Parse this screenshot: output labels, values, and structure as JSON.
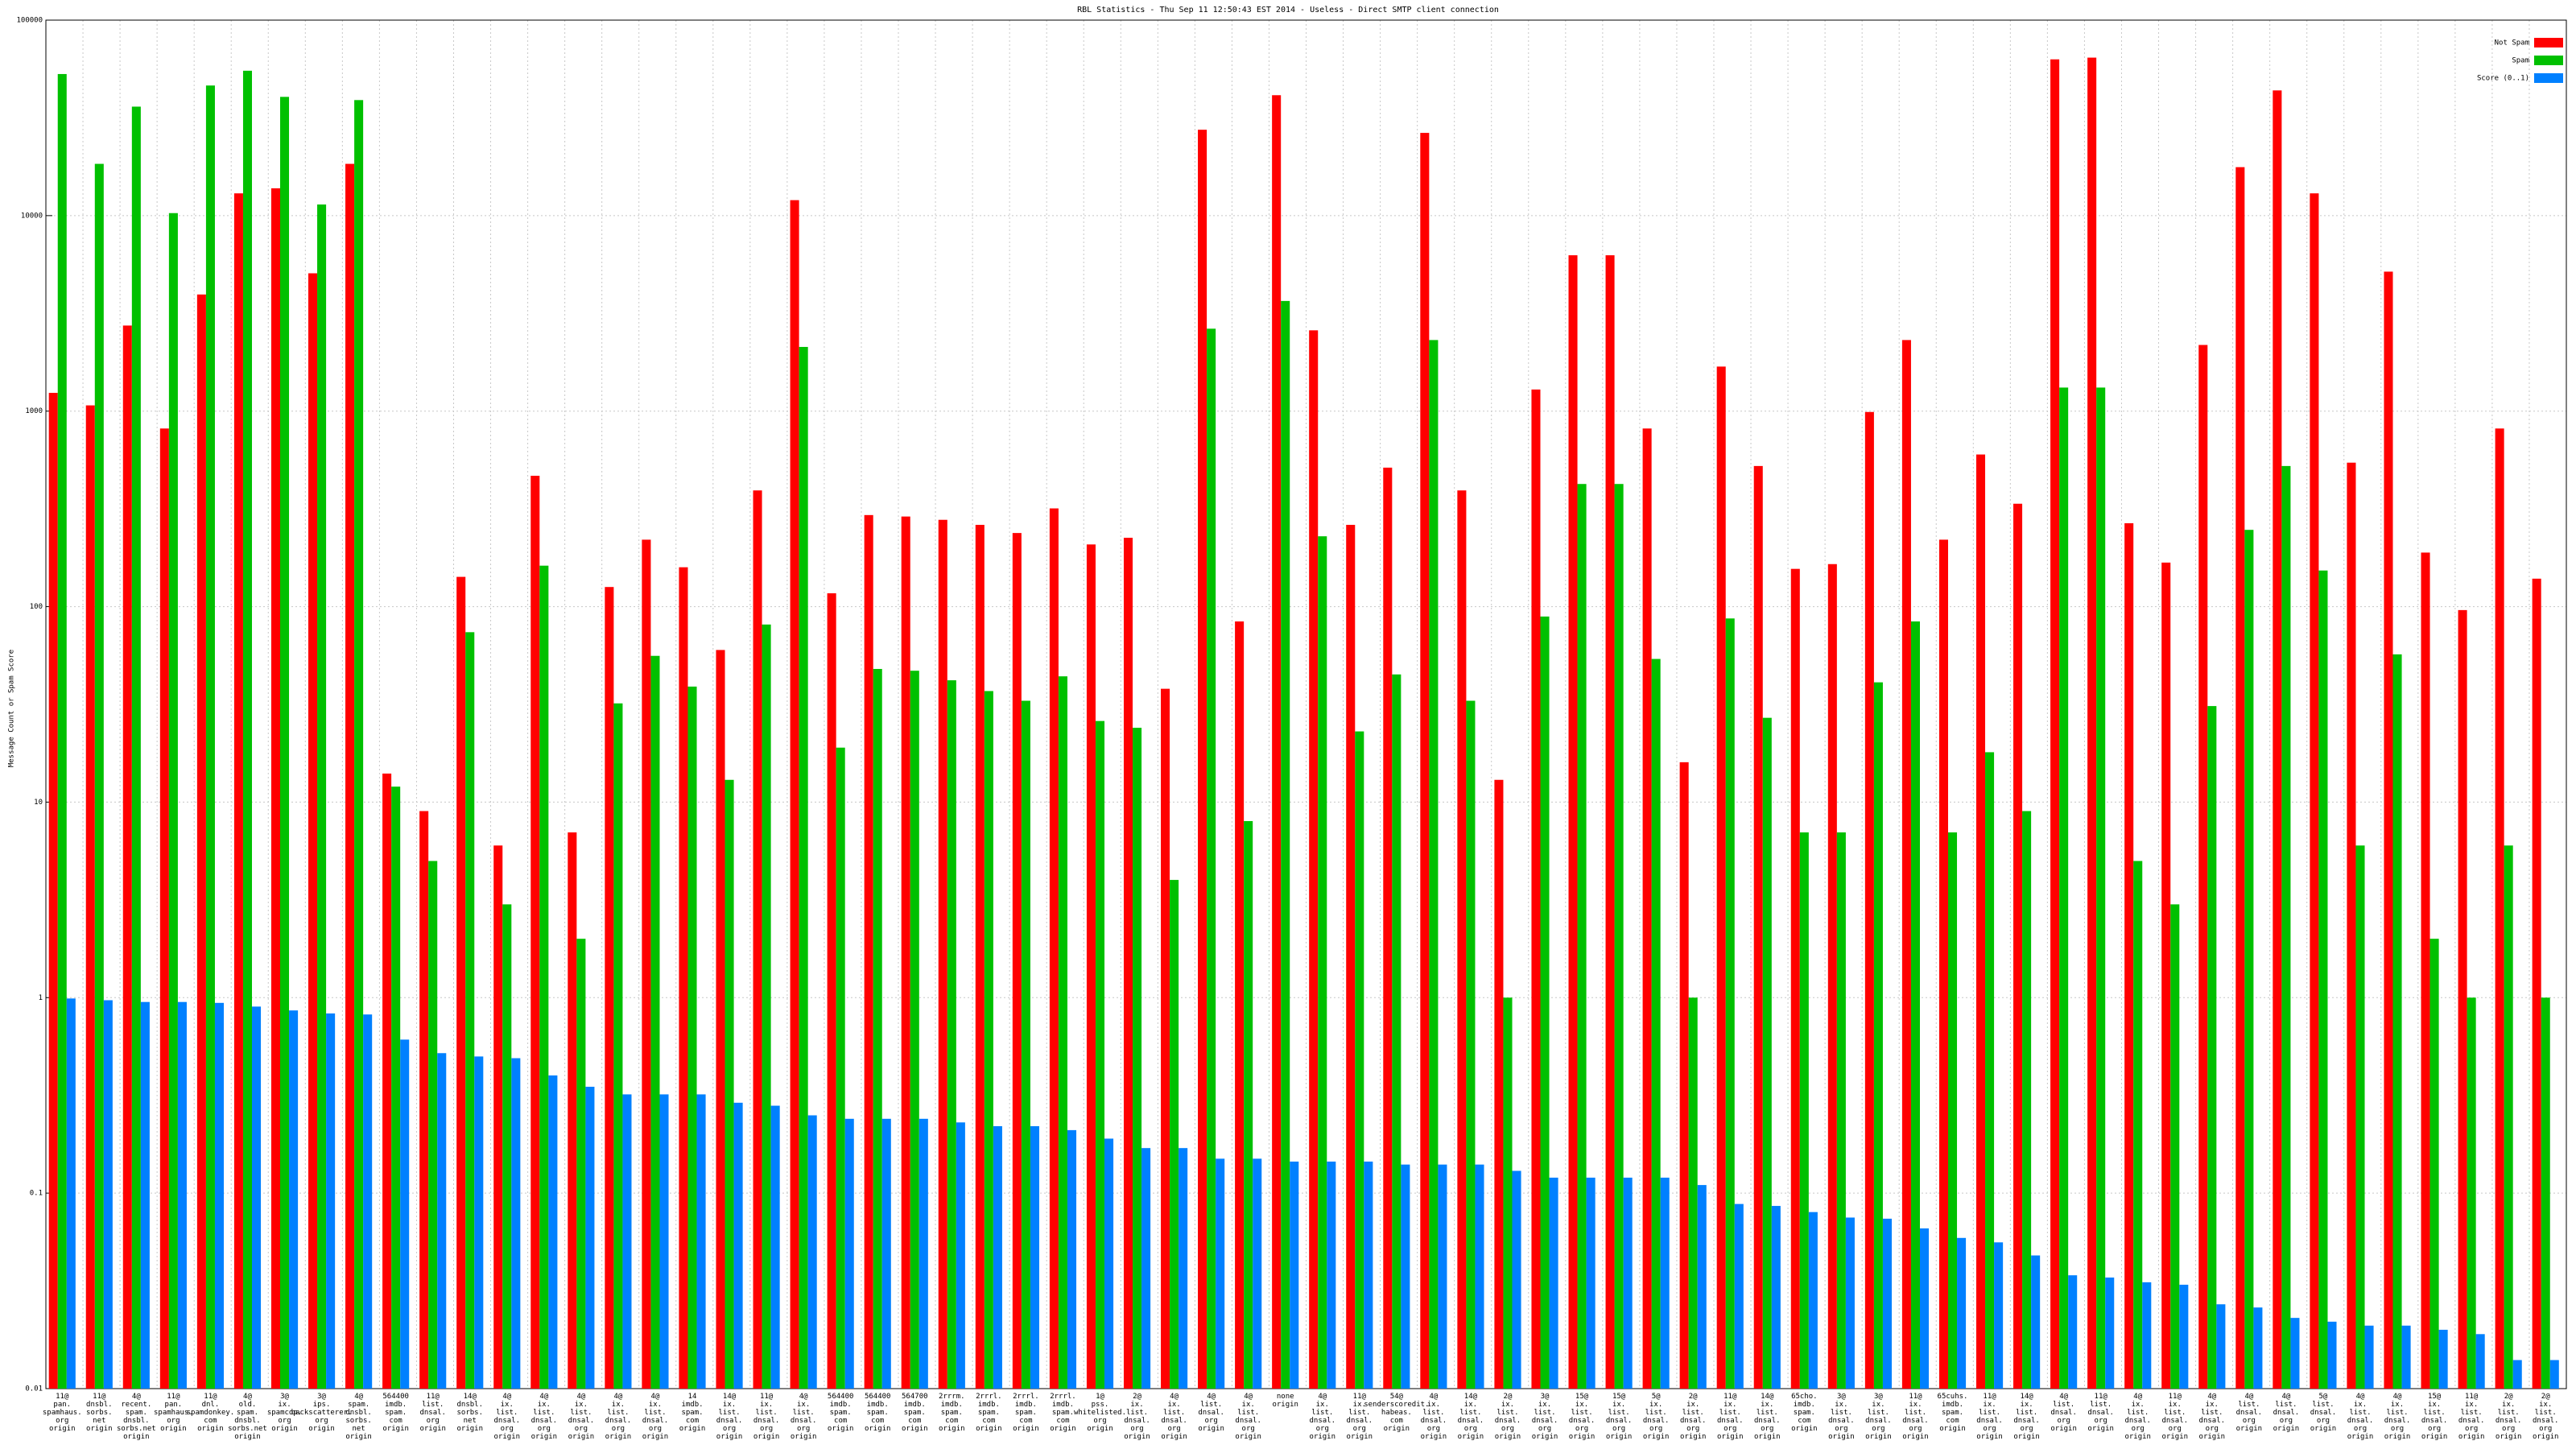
{
  "chart_data": {
    "type": "bar",
    "title": "RBL Statistics - Thu Sep 11 12:50:43 EST 2014 - Useless - Direct SMTP client connection",
    "y_label": "Message Count or Spam Score",
    "log_scale": true,
    "grid": true,
    "legend": "top-right",
    "ylim": [
      0.01,
      100000
    ],
    "yticks": [
      100000,
      10000,
      1000,
      100,
      10,
      1,
      0.1,
      0.01
    ],
    "categories": [
      [
        "11@",
        "pan.",
        "spamhaus.",
        "org",
        "origin"
      ],
      [
        "11@",
        "dnsbl.",
        "sorbs.",
        "net",
        "origin"
      ],
      [
        "4@",
        "recent.",
        "spam.",
        "dnsbl.",
        "sorbs.net",
        "origin"
      ],
      [
        "11@",
        "pan.",
        "spamhaus.",
        "org",
        "origin"
      ],
      [
        "11@",
        "dnl.",
        "spamdonkey.",
        "com",
        "origin"
      ],
      [
        "4@",
        "old.",
        "spam.",
        "dnsbl.",
        "sorbs.net",
        "origin"
      ],
      [
        "3@",
        "ix.",
        "spamcop.",
        "org",
        "origin"
      ],
      [
        "3@",
        "ips.",
        "backscatterer.",
        "org",
        "origin"
      ],
      [
        "4@",
        "spam.",
        "dnsbl.",
        "sorbs.",
        "net",
        "origin"
      ],
      [
        "564400",
        "imdb.",
        "spam.",
        "com",
        "origin"
      ],
      [
        "11@",
        "list.",
        "dnsal.",
        "org",
        "origin"
      ],
      [
        "14@",
        "dnsbl.",
        "sorbs.",
        "net",
        "origin"
      ],
      [
        "4@",
        "ix.",
        "list.",
        "dnsal.",
        "org",
        "origin"
      ],
      [
        "4@",
        "ix.",
        "list.",
        "dnsal.",
        "org",
        "origin"
      ],
      [
        "4@",
        "ix.",
        "list.",
        "dnsal.",
        "org",
        "origin"
      ],
      [
        "4@",
        "ix.",
        "list.",
        "dnsal.",
        "org",
        "origin"
      ],
      [
        "4@",
        "ix.",
        "list.",
        "dnsal.",
        "org",
        "origin"
      ],
      [
        "14",
        "imdb.",
        "spam.",
        "com",
        "origin"
      ],
      [
        "14@",
        "ix.",
        "list.",
        "dnsal.",
        "org",
        "origin"
      ],
      [
        "11@",
        "ix.",
        "list.",
        "dnsal.",
        "org",
        "origin"
      ],
      [
        "4@",
        "ix.",
        "list.",
        "dnsal.",
        "org",
        "origin"
      ],
      [
        "564400",
        "imdb.",
        "spam.",
        "com",
        "origin"
      ],
      [
        "564400",
        "imdb.",
        "spam.",
        "com",
        "origin"
      ],
      [
        "564700",
        "imdb.",
        "spam.",
        "com",
        "origin"
      ],
      [
        "2rrrm.",
        "imdb.",
        "spam.",
        "com",
        "origin"
      ],
      [
        "2rrrl.",
        "imdb.",
        "spam.",
        "com",
        "origin"
      ],
      [
        "2rrrl.",
        "imdb.",
        "spam.",
        "com",
        "origin"
      ],
      [
        "2rrrl.",
        "imdb.",
        "spam.",
        "com",
        "origin"
      ],
      [
        "1@",
        "pss.",
        "whitelisted.",
        "org",
        "origin"
      ],
      [
        "2@",
        "ix.",
        "list.",
        "dnsal.",
        "org",
        "origin"
      ],
      [
        "4@",
        "ix.",
        "list.",
        "dnsal.",
        "org",
        "origin"
      ],
      [
        "4@",
        "list.",
        "dnsal.",
        "org",
        "origin"
      ],
      [
        "4@",
        "ix.",
        "list.",
        "dnsal.",
        "org",
        "origin"
      ],
      [
        "none",
        "origin"
      ],
      [
        "4@",
        "ix.",
        "list.",
        "dnsal.",
        "org",
        "origin"
      ],
      [
        "11@",
        "ix.",
        "list.",
        "dnsal.",
        "org",
        "origin"
      ],
      [
        "54@",
        "senderscoredit.",
        "habeas.",
        "com",
        "origin"
      ],
      [
        "4@",
        "ix.",
        "list.",
        "dnsal.",
        "org",
        "origin"
      ],
      [
        "14@",
        "ix.",
        "list.",
        "dnsal.",
        "org",
        "origin"
      ],
      [
        "2@",
        "ix.",
        "list.",
        "dnsal.",
        "org",
        "origin"
      ],
      [
        "3@",
        "ix.",
        "list.",
        "dnsal.",
        "org",
        "origin"
      ],
      [
        "15@",
        "ix.",
        "list.",
        "dnsal.",
        "org",
        "origin"
      ],
      [
        "15@",
        "ix.",
        "list.",
        "dnsal.",
        "org",
        "origin"
      ],
      [
        "5@",
        "ix.",
        "list.",
        "dnsal.",
        "org",
        "origin"
      ],
      [
        "2@",
        "ix.",
        "list.",
        "dnsal.",
        "org",
        "origin"
      ],
      [
        "11@",
        "ix.",
        "list.",
        "dnsal.",
        "org",
        "origin"
      ],
      [
        "14@",
        "ix.",
        "list.",
        "dnsal.",
        "org",
        "origin"
      ],
      [
        "65cho.",
        "imdb.",
        "spam.",
        "com",
        "origin"
      ],
      [
        "3@",
        "ix.",
        "list.",
        "dnsal.",
        "org",
        "origin"
      ],
      [
        "3@",
        "ix.",
        "list.",
        "dnsal.",
        "org",
        "origin"
      ],
      [
        "11@",
        "ix.",
        "list.",
        "dnsal.",
        "org",
        "origin"
      ],
      [
        "65cuhs.",
        "imdb.",
        "spam.",
        "com",
        "origin"
      ],
      [
        "11@",
        "ix.",
        "list.",
        "dnsal.",
        "org",
        "origin"
      ],
      [
        "14@",
        "ix.",
        "list.",
        "dnsal.",
        "org",
        "origin"
      ],
      [
        "4@",
        "list.",
        "dnsal.",
        "org",
        "origin"
      ],
      [
        "11@",
        "list.",
        "dnsal.",
        "org",
        "origin"
      ],
      [
        "4@",
        "ix.",
        "list.",
        "dnsal.",
        "org",
        "origin"
      ],
      [
        "11@",
        "ix.",
        "list.",
        "dnsal.",
        "org",
        "origin"
      ],
      [
        "4@",
        "ix.",
        "list.",
        "dnsal.",
        "org",
        "origin"
      ],
      [
        "4@",
        "list.",
        "dnsal.",
        "org",
        "origin"
      ],
      [
        "4@",
        "list.",
        "dnsal.",
        "org",
        "origin"
      ],
      [
        "5@",
        "list.",
        "dnsal.",
        "org",
        "origin"
      ],
      [
        "4@",
        "ix.",
        "list.",
        "dnsal.",
        "org",
        "origin"
      ],
      [
        "4@",
        "ix.",
        "list.",
        "dnsal.",
        "org",
        "origin"
      ],
      [
        "15@",
        "ix.",
        "list.",
        "dnsal.",
        "org",
        "origin"
      ],
      [
        "11@",
        "ix.",
        "list.",
        "dnsal.",
        "org",
        "origin"
      ],
      [
        "2@",
        "ix.",
        "list.",
        "dnsal.",
        "org",
        "origin"
      ],
      [
        "2@",
        "ix.",
        "list.",
        "dnsal.",
        "org",
        "origin"
      ]
    ],
    "series": [
      {
        "name": "Not Spam",
        "color": "#ff0000",
        "values": [
          1240,
          1070,
          2740,
          815,
          3950,
          13000,
          13800,
          5070,
          18400,
          14,
          9,
          142,
          6,
          467,
          7,
          126,
          220,
          159,
          60,
          393,
          12000,
          117,
          294,
          289,
          278,
          262,
          238,
          318,
          208,
          225,
          38,
          27500,
          84,
          41300,
          2590,
          262,
          514,
          26500,
          393,
          13,
          1290,
          6270,
          6270,
          815,
          16,
          1690,
          524,
          156,
          165,
          990,
          2310,
          220,
          600,
          336,
          63000,
          64300,
          267,
          168,
          2180,
          17700,
          43700,
          13000,
          545,
          5170,
          189,
          96,
          815,
          139
        ]
      },
      {
        "name": "Spam",
        "color": "#00c000",
        "values": [
          53000,
          18400,
          36100,
          10300,
          46300,
          55100,
          40500,
          11400,
          39000,
          12,
          5,
          74,
          3,
          162,
          2,
          32,
          56,
          39,
          13,
          81,
          2130,
          19,
          48,
          47,
          42,
          37,
          33,
          44,
          26,
          24,
          4,
          2640,
          8,
          3660,
          229,
          23,
          45,
          2310,
          33,
          1,
          89,
          424,
          424,
          54,
          1,
          87,
          27,
          7,
          7,
          41,
          84,
          7,
          18,
          9,
          1320,
          1320,
          5,
          3,
          31,
          247,
          524,
          153,
          6,
          57,
          2,
          1,
          6,
          1
        ]
      },
      {
        "name": "Score (0..1)",
        "color": "#0080ff",
        "values": [
          0.99,
          0.97,
          0.95,
          0.95,
          0.94,
          0.9,
          0.86,
          0.83,
          0.82,
          0.61,
          0.52,
          0.5,
          0.49,
          0.4,
          0.35,
          0.32,
          0.32,
          0.32,
          0.29,
          0.28,
          0.25,
          0.24,
          0.24,
          0.24,
          0.23,
          0.22,
          0.22,
          0.21,
          0.19,
          0.17,
          0.17,
          0.15,
          0.15,
          0.145,
          0.145,
          0.145,
          0.14,
          0.14,
          0.14,
          0.13,
          0.12,
          0.12,
          0.12,
          0.12,
          0.11,
          0.088,
          0.086,
          0.08,
          0.075,
          0.074,
          0.066,
          0.059,
          0.056,
          0.048,
          0.038,
          0.037,
          0.035,
          0.034,
          0.027,
          0.026,
          0.023,
          0.022,
          0.021,
          0.021,
          0.02,
          0.019,
          0.014,
          0.014
        ]
      }
    ]
  }
}
